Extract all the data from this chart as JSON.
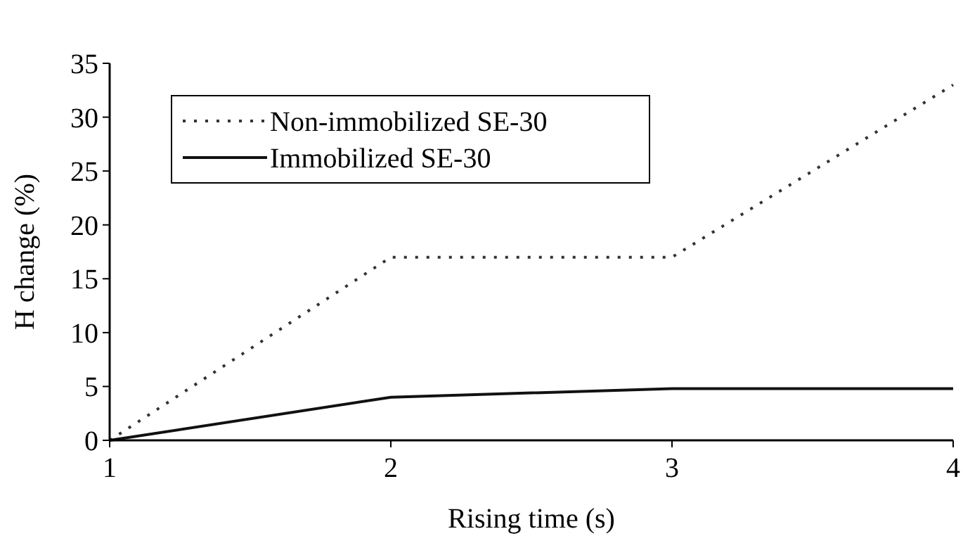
{
  "chart_data": {
    "type": "line",
    "xlabel": "Rising time (s)",
    "ylabel": "H change (%)",
    "x": [
      1,
      2,
      3,
      4
    ],
    "series": [
      {
        "name": "Non-immobilized SE-30",
        "color": "#333333",
        "values": [
          0,
          17,
          17,
          33
        ],
        "line_style": "dotted"
      },
      {
        "name": "Immobilized SE-30",
        "color": "#111111",
        "values": [
          0,
          4,
          4.8,
          4.8
        ],
        "line_style": "solid"
      }
    ],
    "xlim": [
      1,
      4
    ],
    "xticks": [
      1,
      2,
      3,
      4
    ],
    "ylim": [
      0,
      35
    ],
    "yticks": [
      0,
      5,
      10,
      15,
      20,
      25,
      30,
      35
    ],
    "legend": "top left",
    "grid": false,
    "marker": "none"
  }
}
